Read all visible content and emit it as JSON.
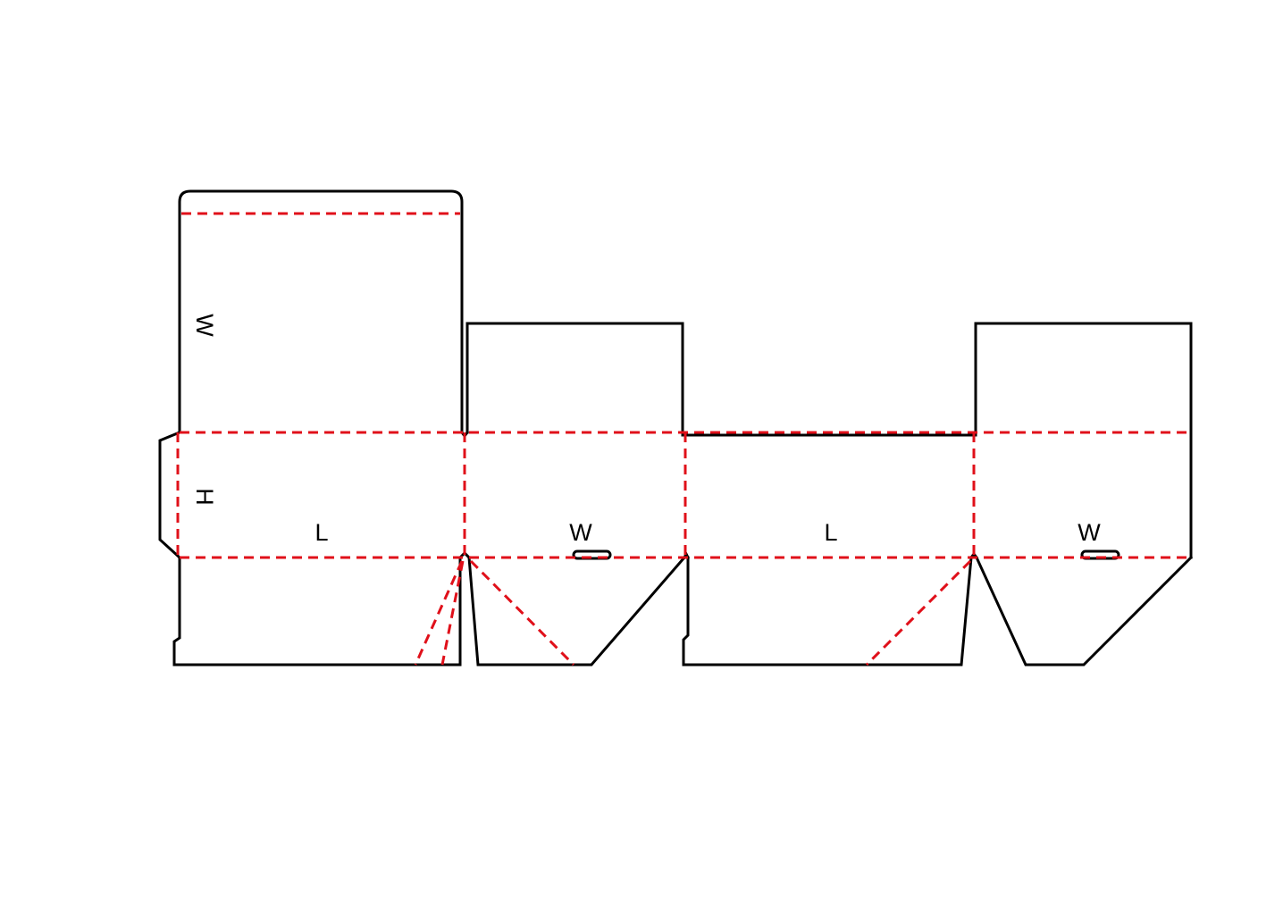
{
  "dimension_labels": {
    "top_flap_w": "W",
    "glue_flap_h": "H",
    "panel1_l": "L",
    "panel2_w": "W",
    "panel3_l": "L",
    "panel4_w": "W"
  },
  "colors": {
    "cut_line": "#000000",
    "fold_line": "#e0101a",
    "background": "#ffffff"
  }
}
